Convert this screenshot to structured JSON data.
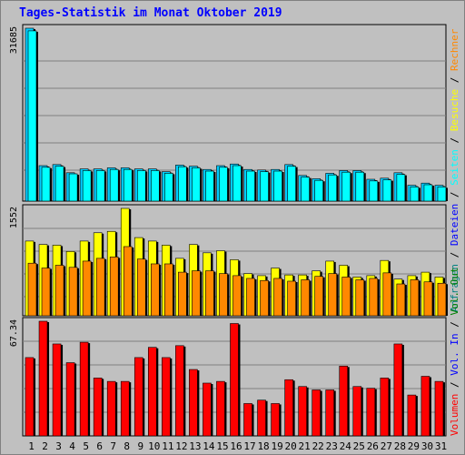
{
  "title": "Tages-Statistik im Monat Oktober 2019",
  "colors": {
    "anfragen": "#00ccff",
    "dateien": "#00ffff",
    "seiten": "#00ffff",
    "besuche": "#ffff00",
    "rechner": "#ff8800",
    "volumen": "#ff0000",
    "in": "#0000ff",
    "out": "#008000",
    "background": "#c0c0c0",
    "grid": "#808080",
    "title": "#0000ff"
  },
  "legend": {
    "top": [
      "Anfragen",
      "Dateien",
      "Seiten",
      "Besuche",
      "Rechner"
    ],
    "top_separator": " / ",
    "bottom": [
      "Volumen",
      "Vol. In",
      "Vol. Out"
    ],
    "bottom_separator": " / "
  },
  "chart_data": [
    {
      "type": "bar",
      "panel": "hits",
      "ylabel": "31685",
      "ylim": [
        0,
        31685
      ],
      "categories": [
        "1",
        "2",
        "3",
        "4",
        "5",
        "6",
        "7",
        "8",
        "9",
        "10",
        "11",
        "12",
        "13",
        "14",
        "15",
        "16",
        "17",
        "18",
        "19",
        "20",
        "21",
        "22",
        "23",
        "24",
        "25",
        "26",
        "27",
        "28",
        "29",
        "30",
        "31"
      ],
      "weekend_days": [
        "5",
        "6",
        "12",
        "13",
        "19",
        "20",
        "26",
        "27"
      ],
      "series": [
        {
          "name": "Anfragen",
          "values": [
            31685,
            6500,
            6700,
            5200,
            5900,
            5900,
            6100,
            6100,
            5900,
            5900,
            5400,
            6600,
            6400,
            5800,
            6500,
            6800,
            5800,
            5700,
            5800,
            6700,
            4700,
            4100,
            5100,
            5600,
            5600,
            4000,
            4200,
            5200,
            2900,
            3300,
            2900
          ]
        },
        {
          "name": "Dateien",
          "values": [
            31200,
            6200,
            6400,
            5000,
            5600,
            5600,
            5800,
            5800,
            5600,
            5600,
            5100,
            6300,
            6100,
            5500,
            6200,
            6500,
            5500,
            5400,
            5500,
            6400,
            4400,
            3800,
            4800,
            5300,
            5300,
            3700,
            3900,
            4900,
            2600,
            3000,
            2600
          ]
        }
      ]
    },
    {
      "type": "bar",
      "panel": "visits",
      "ylabel": "1552",
      "ylim": [
        0,
        1552
      ],
      "categories": [
        "1",
        "2",
        "3",
        "4",
        "5",
        "6",
        "7",
        "8",
        "9",
        "10",
        "11",
        "12",
        "13",
        "14",
        "15",
        "16",
        "17",
        "18",
        "19",
        "20",
        "21",
        "22",
        "23",
        "24",
        "25",
        "26",
        "27",
        "28",
        "29",
        "30",
        "31"
      ],
      "series": [
        {
          "name": "Besuche",
          "values": [
            1080,
            1030,
            1020,
            930,
            1080,
            1200,
            1220,
            1552,
            1130,
            1080,
            1020,
            830,
            1030,
            910,
            940,
            810,
            610,
            580,
            690,
            590,
            590,
            650,
            790,
            730,
            560,
            580,
            800,
            530,
            580,
            630,
            560
          ]
        },
        {
          "name": "Rechner",
          "values": [
            760,
            690,
            730,
            700,
            790,
            830,
            850,
            1000,
            820,
            750,
            750,
            630,
            650,
            650,
            610,
            580,
            540,
            510,
            540,
            500,
            520,
            570,
            610,
            560,
            520,
            540,
            620,
            460,
            520,
            490,
            470
          ]
        }
      ]
    },
    {
      "type": "bar",
      "panel": "volume",
      "ylabel": "67.34",
      "ylim": [
        0,
        67.34
      ],
      "categories": [
        "1",
        "2",
        "3",
        "4",
        "5",
        "6",
        "7",
        "8",
        "9",
        "10",
        "11",
        "12",
        "13",
        "14",
        "15",
        "16",
        "17",
        "18",
        "19",
        "20",
        "21",
        "22",
        "23",
        "24",
        "25",
        "26",
        "27",
        "28",
        "29",
        "30",
        "31"
      ],
      "series": [
        {
          "name": "Volumen",
          "values": [
            46,
            67.34,
            54,
            43,
            55,
            34,
            32,
            32,
            46,
            52,
            46,
            53,
            39,
            31,
            32,
            66,
            19,
            21,
            19,
            33,
            29,
            27,
            27,
            41,
            29,
            28,
            34,
            54,
            24,
            35,
            32
          ]
        }
      ]
    }
  ]
}
